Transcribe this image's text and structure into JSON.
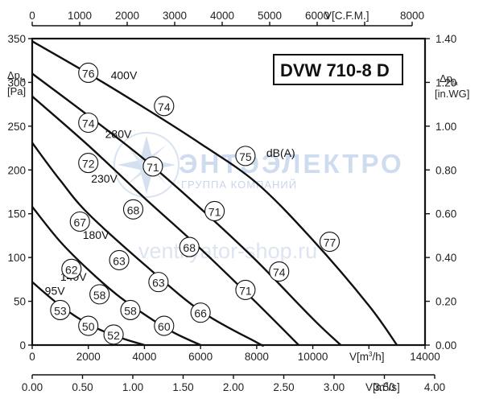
{
  "chart_data": {
    "type": "line",
    "title": "DVW 710-8 D",
    "x_axis_bottom": {
      "label_prefix": "V[m",
      "label_sup": "3",
      "label_suffix": "/h]",
      "range": [
        0,
        14000
      ],
      "ticks": [
        0,
        2000,
        4000,
        6000,
        8000,
        10000,
        12000,
        14000
      ],
      "tick_labels": [
        "0",
        "2000",
        "4000",
        "6000",
        "8000",
        "10000",
        "",
        "14000"
      ]
    },
    "x_axis_m3s": {
      "label_prefix": "V[m",
      "label_sup": "3",
      "label_suffix": "/s]",
      "range": [
        0,
        4.0
      ],
      "ticks": [
        0,
        0.5,
        1.0,
        1.5,
        2.0,
        2.5,
        3.0,
        3.5,
        4.0
      ],
      "tick_labels": [
        "0.00",
        "0.50",
        "1.00",
        "1.50",
        "2.00",
        "2.50",
        "3.00",
        "3.50",
        "4.00"
      ]
    },
    "x_axis_cfm": {
      "label": "V[C.F.M.]",
      "range": [
        0,
        8000
      ],
      "ticks": [
        0,
        1000,
        2000,
        3000,
        4000,
        5000,
        6000,
        7000,
        8000
      ],
      "tick_labels": [
        "0",
        "1000",
        "2000",
        "3000",
        "4000",
        "5000",
        "6000",
        "",
        "8000"
      ]
    },
    "y_axis_left": {
      "label_main": "Δp",
      "label_sub": "fa",
      "unit": "[Pa]",
      "range": [
        0,
        350
      ],
      "ticks": [
        0,
        50,
        100,
        150,
        200,
        250,
        300,
        350
      ],
      "tick_labels": [
        "0",
        "50",
        "100",
        "150",
        "200",
        "250",
        "300",
        "350"
      ]
    },
    "y_axis_right": {
      "label_main": "Δp",
      "label_sub": "fa",
      "unit": "[in.WG]",
      "range": [
        0,
        1.4
      ],
      "ticks": [
        0,
        0.2,
        0.4,
        0.6,
        0.8,
        1.0,
        1.2,
        1.4
      ],
      "tick_labels": [
        "0.00",
        "0.20",
        "0.40",
        "0.60",
        "0.80",
        "1.00",
        "1.20",
        "1.40"
      ]
    },
    "series": [
      {
        "name": "400V",
        "x": [
          0,
          2000,
          4000,
          6000,
          8000,
          10000,
          12000,
          13000
        ],
        "y": [
          347,
          310,
          271,
          230,
          185,
          120,
          45,
          0
        ]
      },
      {
        "name": "280V",
        "x": [
          0,
          2000,
          4000,
          6000,
          8000,
          10000,
          11000
        ],
        "y": [
          310,
          262,
          212,
          156,
          96,
          30,
          0
        ]
      },
      {
        "name": "230V",
        "x": [
          0,
          2000,
          4000,
          6000,
          8000,
          9500
        ],
        "y": [
          284,
          228,
          168,
          110,
          48,
          0
        ]
      },
      {
        "name": "180V",
        "x": [
          0,
          1000,
          2000,
          4000,
          6000,
          8000,
          8200
        ],
        "y": [
          231,
          188,
          150,
          92,
          39,
          3,
          0
        ]
      },
      {
        "name": "140V",
        "x": [
          0,
          1000,
          2000,
          3000,
          4000,
          5000,
          6000
        ],
        "y": [
          158,
          118,
          86,
          58,
          35,
          15,
          0
        ]
      },
      {
        "name": "95V",
        "x": [
          0,
          1000,
          2000,
          3000,
          4000
        ],
        "y": [
          72,
          45,
          24,
          10,
          0
        ]
      }
    ],
    "series_labels": [
      {
        "text": "400V",
        "x": 2800,
        "y": 308
      },
      {
        "text": "280V",
        "x": 2600,
        "y": 241
      },
      {
        "text": "230V",
        "x": 2100,
        "y": 190
      },
      {
        "text": "180V",
        "x": 1800,
        "y": 126
      },
      {
        "text": "140V",
        "x": 1000,
        "y": 78
      },
      {
        "text": "95V",
        "x": 450,
        "y": 62
      }
    ],
    "db_label": {
      "text": "dB(A)",
      "x": 8000,
      "y": 216
    },
    "noise_markers": [
      {
        "value": "76",
        "x": 2000,
        "y": 311
      },
      {
        "value": "74",
        "x": 4700,
        "y": 273
      },
      {
        "value": "75",
        "x": 7600,
        "y": 216
      },
      {
        "value": "77",
        "x": 10600,
        "y": 118
      },
      {
        "value": "74",
        "x": 2000,
        "y": 254
      },
      {
        "value": "71",
        "x": 4300,
        "y": 204
      },
      {
        "value": "71",
        "x": 6500,
        "y": 153
      },
      {
        "value": "74",
        "x": 8800,
        "y": 84
      },
      {
        "value": "72",
        "x": 2000,
        "y": 208
      },
      {
        "value": "68",
        "x": 3600,
        "y": 155
      },
      {
        "value": "68",
        "x": 5600,
        "y": 112
      },
      {
        "value": "71",
        "x": 7600,
        "y": 63
      },
      {
        "value": "67",
        "x": 1700,
        "y": 141
      },
      {
        "value": "63",
        "x": 3100,
        "y": 97
      },
      {
        "value": "63",
        "x": 4500,
        "y": 72
      },
      {
        "value": "66",
        "x": 6000,
        "y": 37
      },
      {
        "value": "62",
        "x": 1400,
        "y": 87
      },
      {
        "value": "58",
        "x": 2400,
        "y": 58
      },
      {
        "value": "58",
        "x": 3500,
        "y": 40
      },
      {
        "value": "60",
        "x": 4700,
        "y": 22
      },
      {
        "value": "53",
        "x": 1000,
        "y": 40
      },
      {
        "value": "50",
        "x": 2000,
        "y": 22
      },
      {
        "value": "52",
        "x": 2900,
        "y": 12
      }
    ],
    "grid": false
  },
  "watermark": {
    "brand": "ЭНТЭЭЛЕКТРО",
    "group": "ГРУППА КОМПАНИЙ",
    "site": "ventilyator-shop.ru"
  }
}
